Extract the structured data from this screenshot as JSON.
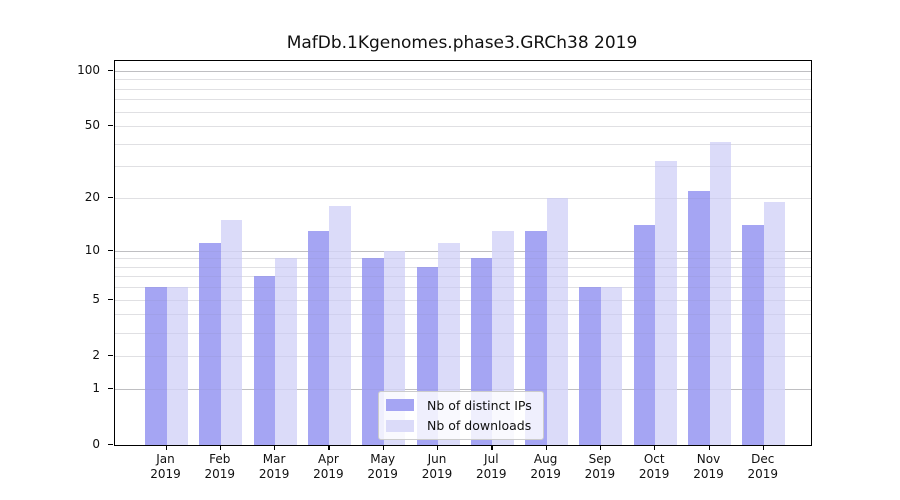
{
  "chart_data": {
    "type": "bar",
    "title": "MafDb.1Kgenomes.phase3.GRCh38 2019",
    "categories": [
      "Jan",
      "Feb",
      "Mar",
      "Apr",
      "May",
      "Jun",
      "Jul",
      "Aug",
      "Sep",
      "Oct",
      "Nov",
      "Dec"
    ],
    "category_year": "2019",
    "series": [
      {
        "name": "Nb of distinct IPs",
        "color": "#a5a5f3",
        "values": [
          6,
          11,
          7,
          13,
          9,
          8,
          9,
          13,
          6,
          14,
          22,
          14
        ]
      },
      {
        "name": "Nb of downloads",
        "color": "#dbdbf9",
        "values": [
          6,
          15,
          9,
          18,
          10,
          11,
          13,
          20,
          6,
          32,
          41,
          19
        ]
      }
    ],
    "y_scale": "log1p",
    "y_axis_ticks": [
      100,
      50,
      20,
      10,
      5,
      2,
      1,
      0
    ],
    "gridlines_major": [
      1,
      10,
      100
    ],
    "gridlines_minor": [
      2,
      3,
      4,
      5,
      6,
      7,
      8,
      9,
      20,
      30,
      40,
      50,
      60,
      70,
      80,
      90
    ],
    "grid_color_major": "#c8c8c8",
    "grid_color_minor": "#ededed",
    "legend_position": "lower center",
    "xlabel": "",
    "ylabel": ""
  }
}
